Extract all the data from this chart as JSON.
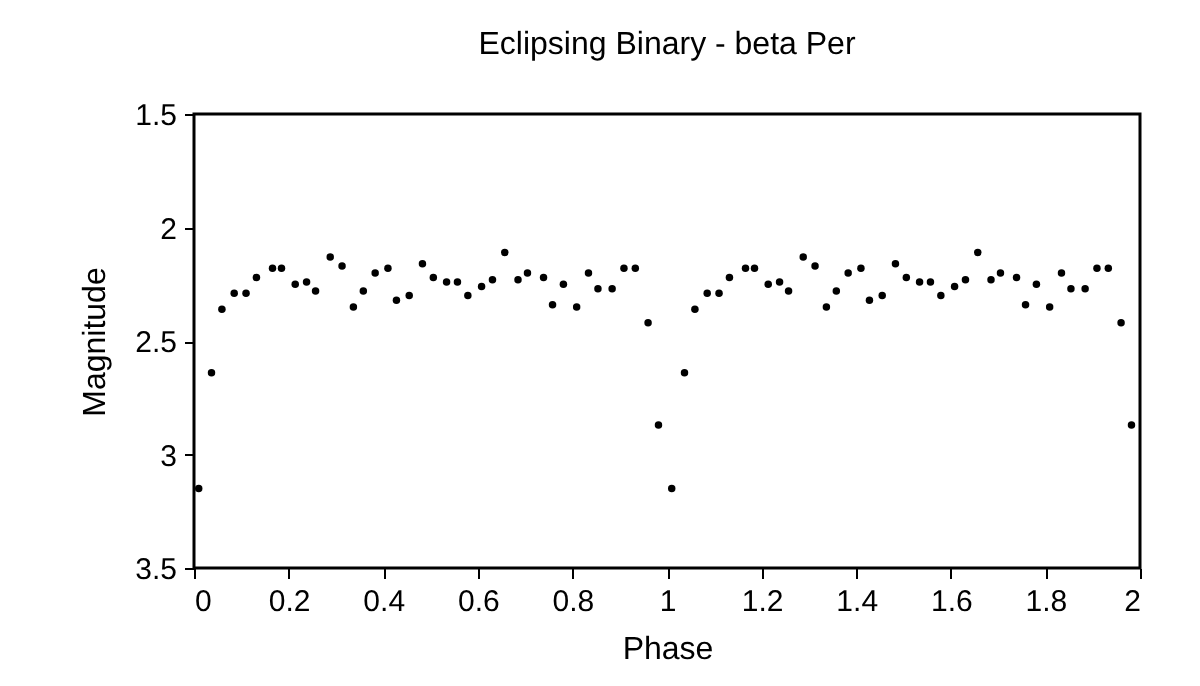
{
  "chart_data": {
    "type": "scatter",
    "title": "Eclipsing Binary - beta Per",
    "xlabel": "Phase",
    "ylabel": "Magnitude",
    "x": [
      0.01,
      0.037,
      0.059,
      0.085,
      0.11,
      0.132,
      0.166,
      0.185,
      0.214,
      0.238,
      0.257,
      0.288,
      0.313,
      0.337,
      0.358,
      0.383,
      0.41,
      0.428,
      0.455,
      0.483,
      0.506,
      0.534,
      0.557,
      0.579,
      0.608,
      0.631,
      0.657,
      0.685,
      0.705,
      0.739,
      0.758,
      0.781,
      0.809,
      0.834,
      0.854,
      0.884,
      0.909,
      0.933,
      0.96,
      0.982,
      1.01,
      1.037,
      1.059,
      1.085,
      1.11,
      1.132,
      1.166,
      1.185,
      1.214,
      1.238,
      1.257,
      1.288,
      1.313,
      1.337,
      1.358,
      1.383,
      1.41,
      1.428,
      1.455,
      1.483,
      1.506,
      1.534,
      1.557,
      1.579,
      1.608,
      1.631,
      1.657,
      1.685,
      1.705,
      1.739,
      1.758,
      1.781,
      1.809,
      1.834,
      1.854,
      1.884,
      1.909,
      1.933,
      1.96,
      1.982
    ],
    "series": [
      {
        "color": "#000000",
        "values": [
          3.15,
          2.64,
          2.36,
          2.29,
          2.29,
          2.22,
          2.18,
          2.18,
          2.25,
          2.24,
          2.28,
          2.13,
          2.17,
          2.35,
          2.28,
          2.2,
          2.18,
          2.32,
          2.3,
          2.16,
          2.22,
          2.24,
          2.24,
          2.3,
          2.26,
          2.23,
          2.11,
          2.23,
          2.2,
          2.22,
          2.34,
          2.25,
          2.35,
          2.2,
          2.27,
          2.27,
          2.18,
          2.18,
          2.42,
          2.87,
          3.15,
          2.64,
          2.36,
          2.29,
          2.29,
          2.22,
          2.18,
          2.18,
          2.25,
          2.24,
          2.28,
          2.13,
          2.17,
          2.35,
          2.28,
          2.2,
          2.18,
          2.32,
          2.3,
          2.16,
          2.22,
          2.24,
          2.24,
          2.3,
          2.26,
          2.23,
          2.11,
          2.23,
          2.2,
          2.22,
          2.34,
          2.25,
          2.35,
          2.2,
          2.27,
          2.27,
          2.18,
          2.18,
          2.42,
          2.87
        ]
      }
    ],
    "xlim": [
      0,
      2
    ],
    "xticks": [
      0,
      0.2,
      0.4,
      0.6,
      0.8,
      1,
      1.2,
      1.4,
      1.6,
      1.8,
      2
    ],
    "ylim": [
      3.5,
      1.5
    ],
    "yticks": [
      1.5,
      2,
      2.5,
      3,
      3.5
    ],
    "marker": "circle",
    "grid": false,
    "legend": false
  }
}
